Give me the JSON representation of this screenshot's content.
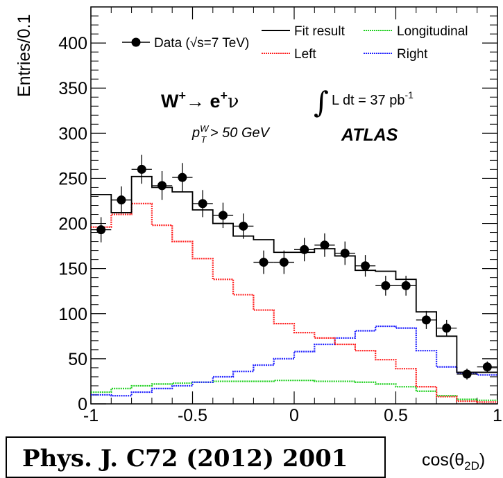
{
  "chart_data": {
    "type": "histogram",
    "ylabel": "Entries/0.1",
    "xlabel": "cos(θ_2D)",
    "xlim": [
      -1,
      1
    ],
    "ylim": [
      0,
      440
    ],
    "x_ticks": [
      "-1",
      "-0.5",
      "0",
      "0.5",
      "1"
    ],
    "y_ticks": [
      "0",
      "50",
      "100",
      "150",
      "200",
      "250",
      "300",
      "350",
      "400"
    ],
    "bin_edges": [
      -1.0,
      -0.9,
      -0.8,
      -0.7,
      -0.6,
      -0.5,
      -0.4,
      -0.3,
      -0.2,
      -0.1,
      0.0,
      0.1,
      0.2,
      0.3,
      0.4,
      0.5,
      0.6,
      0.7,
      0.8,
      0.9,
      1.0
    ],
    "series": [
      {
        "name": "Data (√s=7 TeV)",
        "kind": "points",
        "color": "#000000",
        "values": [
          193,
          226,
          260,
          242,
          251,
          222,
          209,
          197,
          157,
          157,
          171,
          176,
          167,
          153,
          131,
          131,
          93,
          84,
          33,
          41
        ],
        "errors": [
          14,
          15,
          16,
          16,
          16,
          15,
          14,
          14,
          13,
          13,
          13,
          13,
          13,
          12,
          11,
          11,
          10,
          9,
          6,
          6
        ]
      },
      {
        "name": "Fit result",
        "kind": "step",
        "color": "#000000",
        "values": [
          232,
          212,
          252,
          240,
          235,
          215,
          200,
          186,
          182,
          168,
          168,
          172,
          164,
          148,
          147,
          138,
          102,
          75,
          35,
          35
        ]
      },
      {
        "name": "Left",
        "kind": "step",
        "color": "#ff2020",
        "values": [
          196,
          210,
          222,
          198,
          180,
          161,
          138,
          121,
          104,
          89,
          79,
          73,
          66,
          59,
          49,
          39,
          19,
          8,
          3,
          2
        ]
      },
      {
        "name": "Longitudinal",
        "kind": "step",
        "color": "#20d020",
        "values": [
          13,
          17,
          20,
          22,
          23,
          24,
          25,
          25,
          25,
          26,
          26,
          25,
          25,
          24,
          22,
          19,
          14,
          9,
          5,
          4
        ]
      },
      {
        "name": "Right",
        "kind": "step",
        "color": "#2020ff",
        "values": [
          10,
          9,
          13,
          17,
          20,
          24,
          30,
          36,
          43,
          50,
          58,
          66,
          73,
          81,
          86,
          84,
          59,
          41,
          34,
          32
        ]
      }
    ]
  },
  "annotations": {
    "process_w": "W",
    "process_w_sup": "+",
    "process_arrow": "→",
    "process_e": " e",
    "process_e_sup": "+",
    "process_nu": "ν",
    "cut": "p",
    "cut_sup": "W",
    "cut_sub": "T",
    "cut_rest": " > 50 GeV",
    "lumi_integral": "∫",
    "lumi_text": "L dt = 37 pb",
    "lumi_sup": "-1",
    "experiment": "ATLAS"
  },
  "citation": "Phys. J. C72 (2012) 2001"
}
